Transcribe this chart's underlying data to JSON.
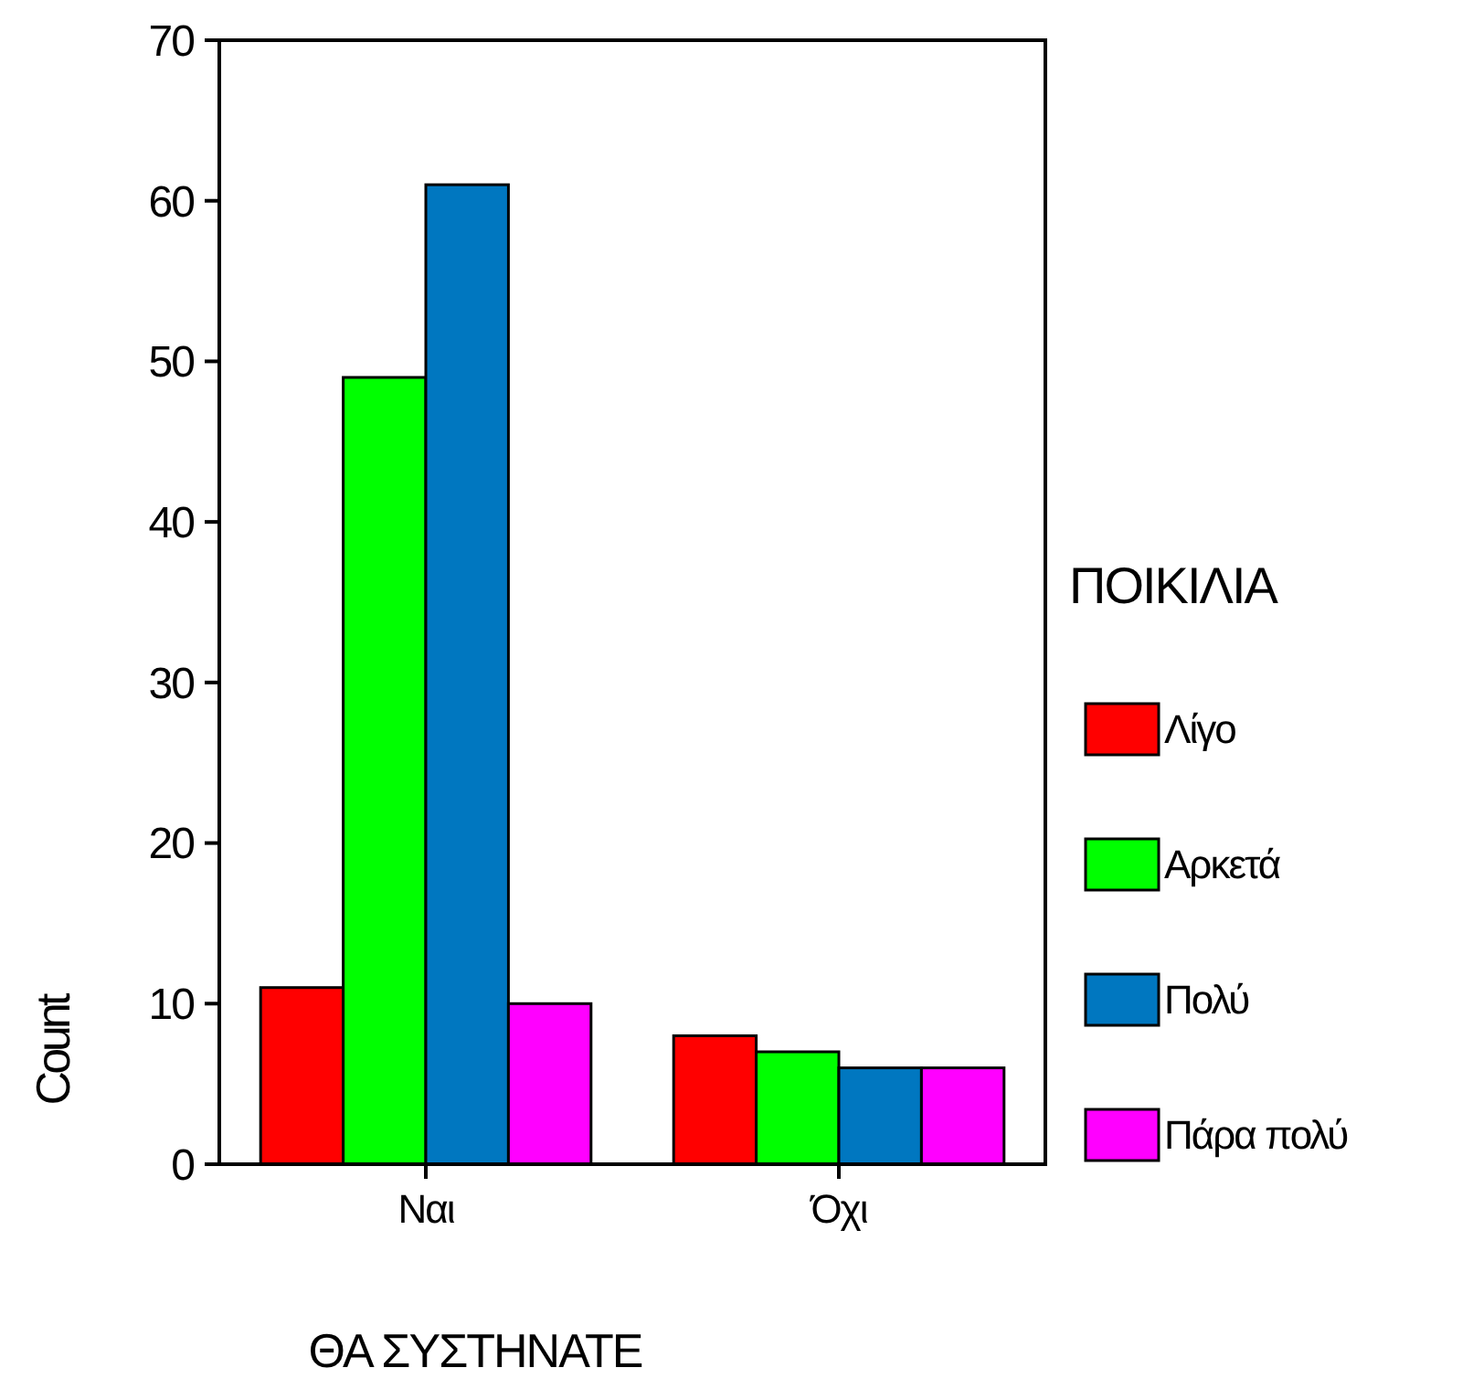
{
  "chart_data": {
    "type": "bar",
    "xlabel": "ΘΑ ΣΥΣΤΗΝΑΤΕ",
    "ylabel": "Count",
    "legend_title": "ΠΟΙΚΙΛΙΑ",
    "categories": [
      "Ναι",
      "Όχι"
    ],
    "series": [
      {
        "name": "Λίγο",
        "color": "#ff0000",
        "values": [
          11,
          8
        ]
      },
      {
        "name": "Αρκετά",
        "color": "#00ff00",
        "values": [
          49,
          7
        ]
      },
      {
        "name": "Πολύ",
        "color": "#0077c0",
        "values": [
          61,
          6
        ]
      },
      {
        "name": "Πάρα πολύ",
        "color": "#ff00ff",
        "values": [
          10,
          6
        ]
      }
    ],
    "ylim": [
      0,
      70
    ],
    "yticks": [
      0,
      10,
      20,
      30,
      40,
      50,
      60,
      70
    ],
    "grid": false,
    "legend": "right"
  }
}
